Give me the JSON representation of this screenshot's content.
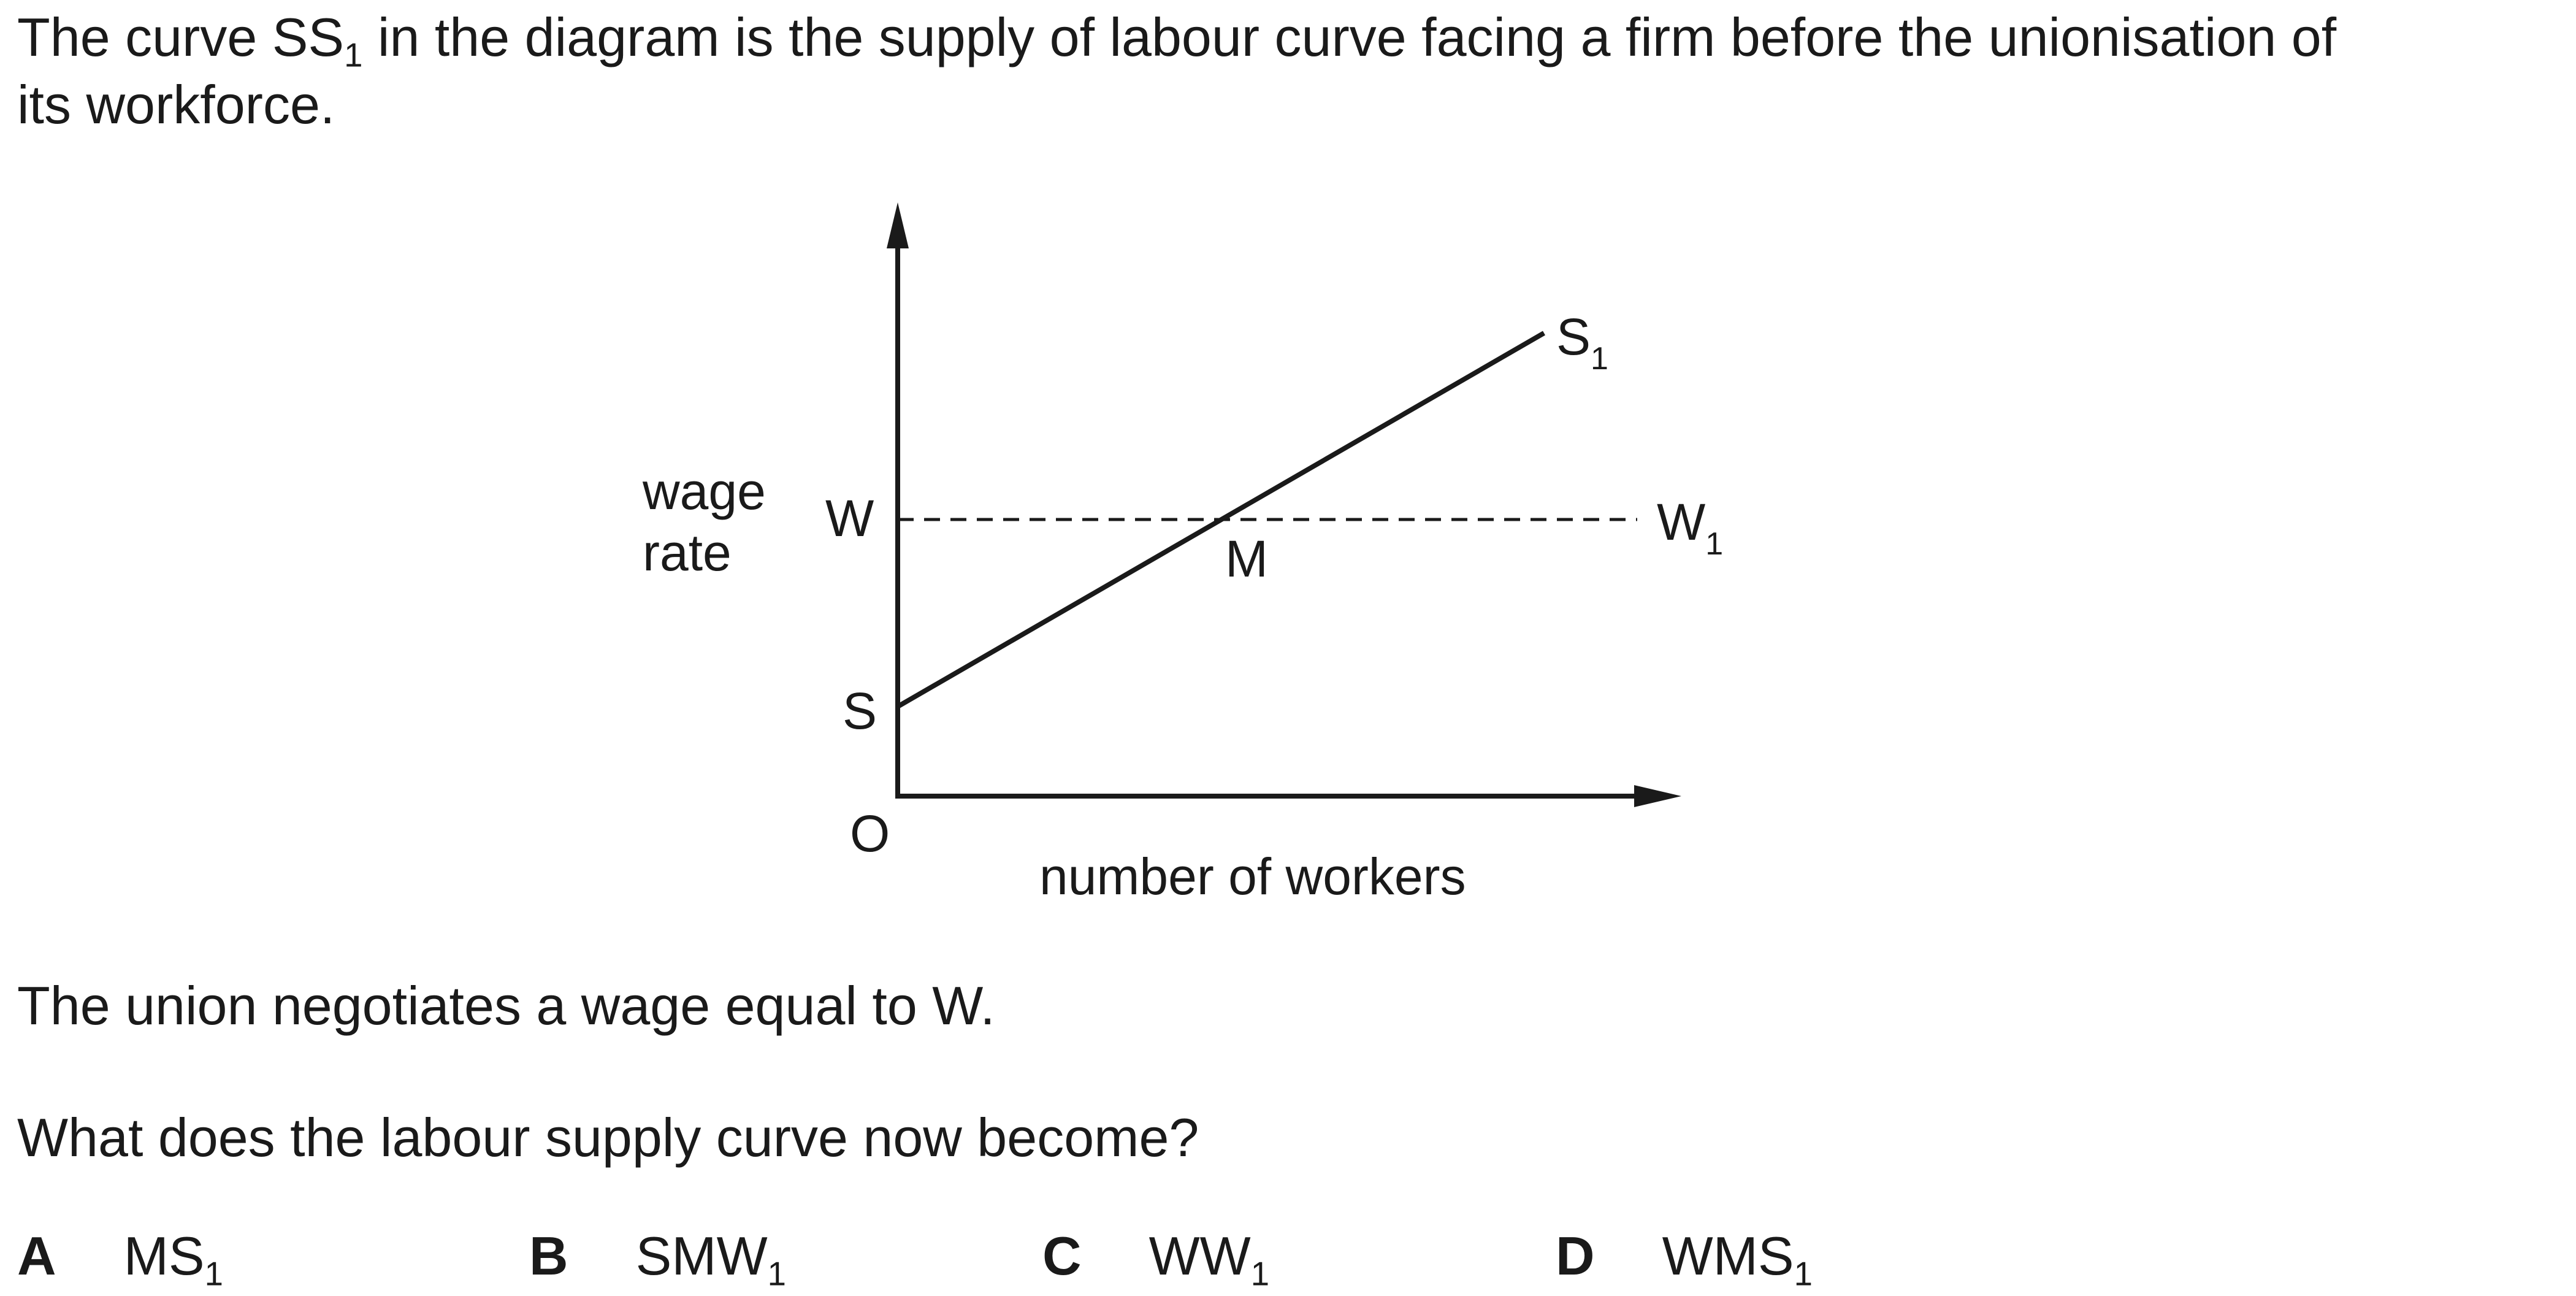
{
  "question": {
    "stem_line1_a": "The curve SS",
    "stem_line1_sub": "1",
    "stem_line1_b": " in the diagram is the supply of labour curve facing a firm before the unionisation of",
    "stem_line2": "its workforce.",
    "union_text": "The union negotiates a wage equal to W.",
    "prompt": "What does the labour supply curve now become?"
  },
  "diagram": {
    "y_axis_label_line1": "wage",
    "y_axis_label_line2": "rate",
    "x_axis_label": "number of workers",
    "origin_label": "O",
    "point_w": "W",
    "point_s": "S",
    "point_m": "M",
    "label_s1": "S",
    "label_s1_sub": "1",
    "label_w1": "W",
    "label_w1_sub": "1"
  },
  "options": [
    {
      "letter": "A",
      "text": "MS",
      "sub": "1"
    },
    {
      "letter": "B",
      "text": "SMW",
      "sub": "1"
    },
    {
      "letter": "C",
      "text": "WW",
      "sub": "1"
    },
    {
      "letter": "D",
      "text": "WMS",
      "sub": "1"
    }
  ]
}
